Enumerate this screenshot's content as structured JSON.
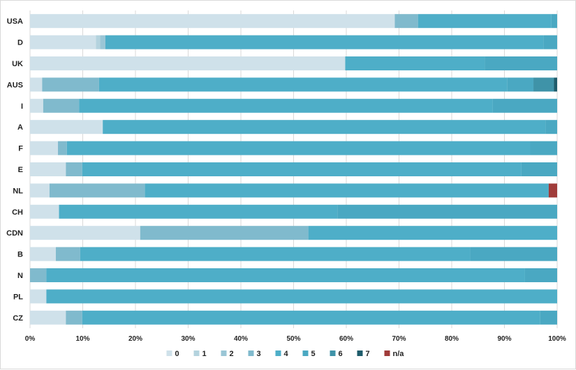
{
  "chart_data": {
    "type": "bar",
    "orientation": "horizontal",
    "stacked": "percent",
    "categories": [
      "USA",
      "D",
      "UK",
      "AUS",
      "I",
      "A",
      "F",
      "E",
      "NL",
      "CH",
      "CDN",
      "B",
      "N",
      "PL",
      "CZ"
    ],
    "series": [
      {
        "name": "0",
        "color": "#cfe1ea",
        "values": [
          69.2,
          12.5,
          59.8,
          2.3,
          2.5,
          13.8,
          5.3,
          6.8,
          3.7,
          5.5,
          20.9,
          4.9,
          0,
          3.1,
          6.8
        ]
      },
      {
        "name": "1",
        "color": "#b4d3de",
        "values": [
          0,
          0.8,
          0,
          0,
          0,
          0,
          0,
          0,
          0,
          0,
          0,
          0,
          0,
          0,
          0
        ]
      },
      {
        "name": "2",
        "color": "#9ac6d6",
        "values": [
          0,
          1.0,
          0,
          0,
          0,
          0,
          0,
          0,
          0,
          0,
          0,
          0,
          0,
          0,
          0
        ]
      },
      {
        "name": "3",
        "color": "#80bacd",
        "values": [
          4.4,
          0,
          0,
          10.8,
          6.8,
          0,
          1.7,
          3.1,
          18.1,
          0,
          31.9,
          4.6,
          3.1,
          0,
          3.1
        ]
      },
      {
        "name": "4",
        "color": "#4eaec8",
        "values": [
          25.3,
          83.1,
          26.5,
          77.4,
          78.5,
          84.0,
          87.9,
          83.3,
          76.6,
          52.8,
          47.2,
          74.0,
          90.8,
          96.9,
          86.9
        ]
      },
      {
        "name": "5",
        "color": "#4aa8c2",
        "values": [
          1.1,
          2.6,
          13.7,
          5.0,
          12.2,
          2.2,
          5.1,
          6.8,
          0,
          41.7,
          0,
          16.5,
          6.1,
          0,
          3.2
        ]
      },
      {
        "name": "6",
        "color": "#3f93a8",
        "values": [
          0,
          0,
          0,
          3.9,
          0,
          0,
          0,
          0,
          0,
          0,
          0,
          0,
          0,
          0,
          0
        ]
      },
      {
        "name": "7",
        "color": "#1f5c6b",
        "values": [
          0,
          0,
          0,
          0.6,
          0,
          0,
          0,
          0,
          0,
          0,
          0,
          0,
          0,
          0,
          0
        ]
      },
      {
        "name": "n/a",
        "color": "#a03c3a",
        "values": [
          0,
          0,
          0,
          0,
          0,
          0,
          0,
          0,
          1.6,
          0,
          0,
          0,
          0,
          0,
          0
        ]
      }
    ],
    "xlim": [
      0,
      100
    ],
    "xticks": [
      "0%",
      "10%",
      "20%",
      "30%",
      "40%",
      "50%",
      "60%",
      "70%",
      "80%",
      "90%",
      "100%"
    ],
    "grid": "vertical",
    "legend_position": "bottom",
    "title": "",
    "xlabel": "",
    "ylabel": ""
  }
}
